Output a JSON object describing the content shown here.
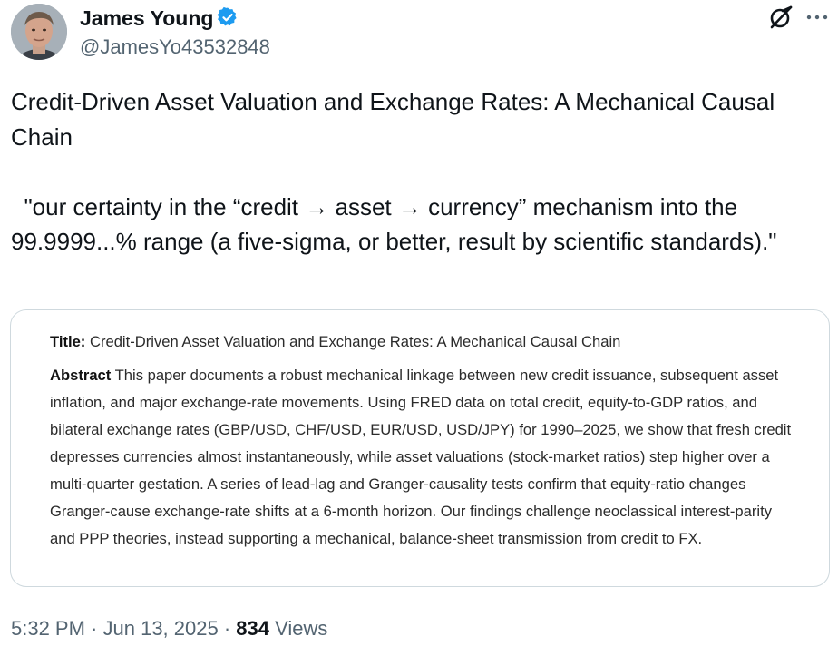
{
  "author": {
    "display_name": "James Young",
    "handle": "@JamesYo43532848",
    "verified_color": "#1d9bf0"
  },
  "header_icons": [
    "grok-icon",
    "more-icon"
  ],
  "tweet": {
    "title_line": "Credit-Driven Asset Valuation and Exchange Rates: A Mechanical Causal Chain",
    "quote": "  \"our certainty in the “credit → asset → currency” mechanism into the 99.9999...% range (a five-sigma, or better, result by scientific standards).\""
  },
  "card": {
    "title_label": "Title:",
    "title": "Credit-Driven Asset Valuation and Exchange Rates: A Mechanical Causal Chain",
    "abstract_label": "Abstract",
    "abstract": "This paper documents a robust mechanical linkage between new credit issuance, subsequent asset inflation, and major exchange-rate movements. Using FRED data on total credit, equity-to-GDP ratios, and bilateral exchange rates (GBP/USD, CHF/USD, EUR/USD, USD/JPY) for 1990–2025, we show that fresh credit depresses currencies almost instantaneously, while asset valuations (stock-market ratios) step higher over a multi-quarter gestation. A series of lead-lag and Granger-causality tests confirm that equity-ratio changes Granger-cause exchange-rate shifts at a 6-month horizon. Our findings challenge neoclassical interest-parity and PPP theories, instead supporting a mechanical, balance-sheet transmission from credit to FX."
  },
  "meta": {
    "time": "5:32 PM",
    "sep1": " · ",
    "date": "Jun 13, 2025",
    "sep2": " · ",
    "views_count": "834",
    "views_label": " Views"
  }
}
